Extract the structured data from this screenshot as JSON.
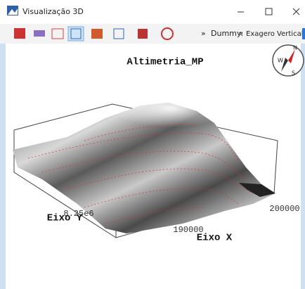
{
  "window": {
    "title": "Visualização 3D"
  },
  "toolbar": {
    "overflow_1": "»",
    "dummy_label": "Dummy:",
    "overflow_2": "»",
    "exaggeration_label": "Exagero Vertical:"
  },
  "view": {
    "title": "Altimetria_MP",
    "x_axis_label": "Eixo X",
    "y_axis_label": "Eixo Y",
    "x_tick_labels": [
      "190000",
      "200000"
    ],
    "y_tick_labels": [
      "8.25e6"
    ],
    "compass": {
      "north": "N",
      "west": "W",
      "south": "S"
    }
  }
}
